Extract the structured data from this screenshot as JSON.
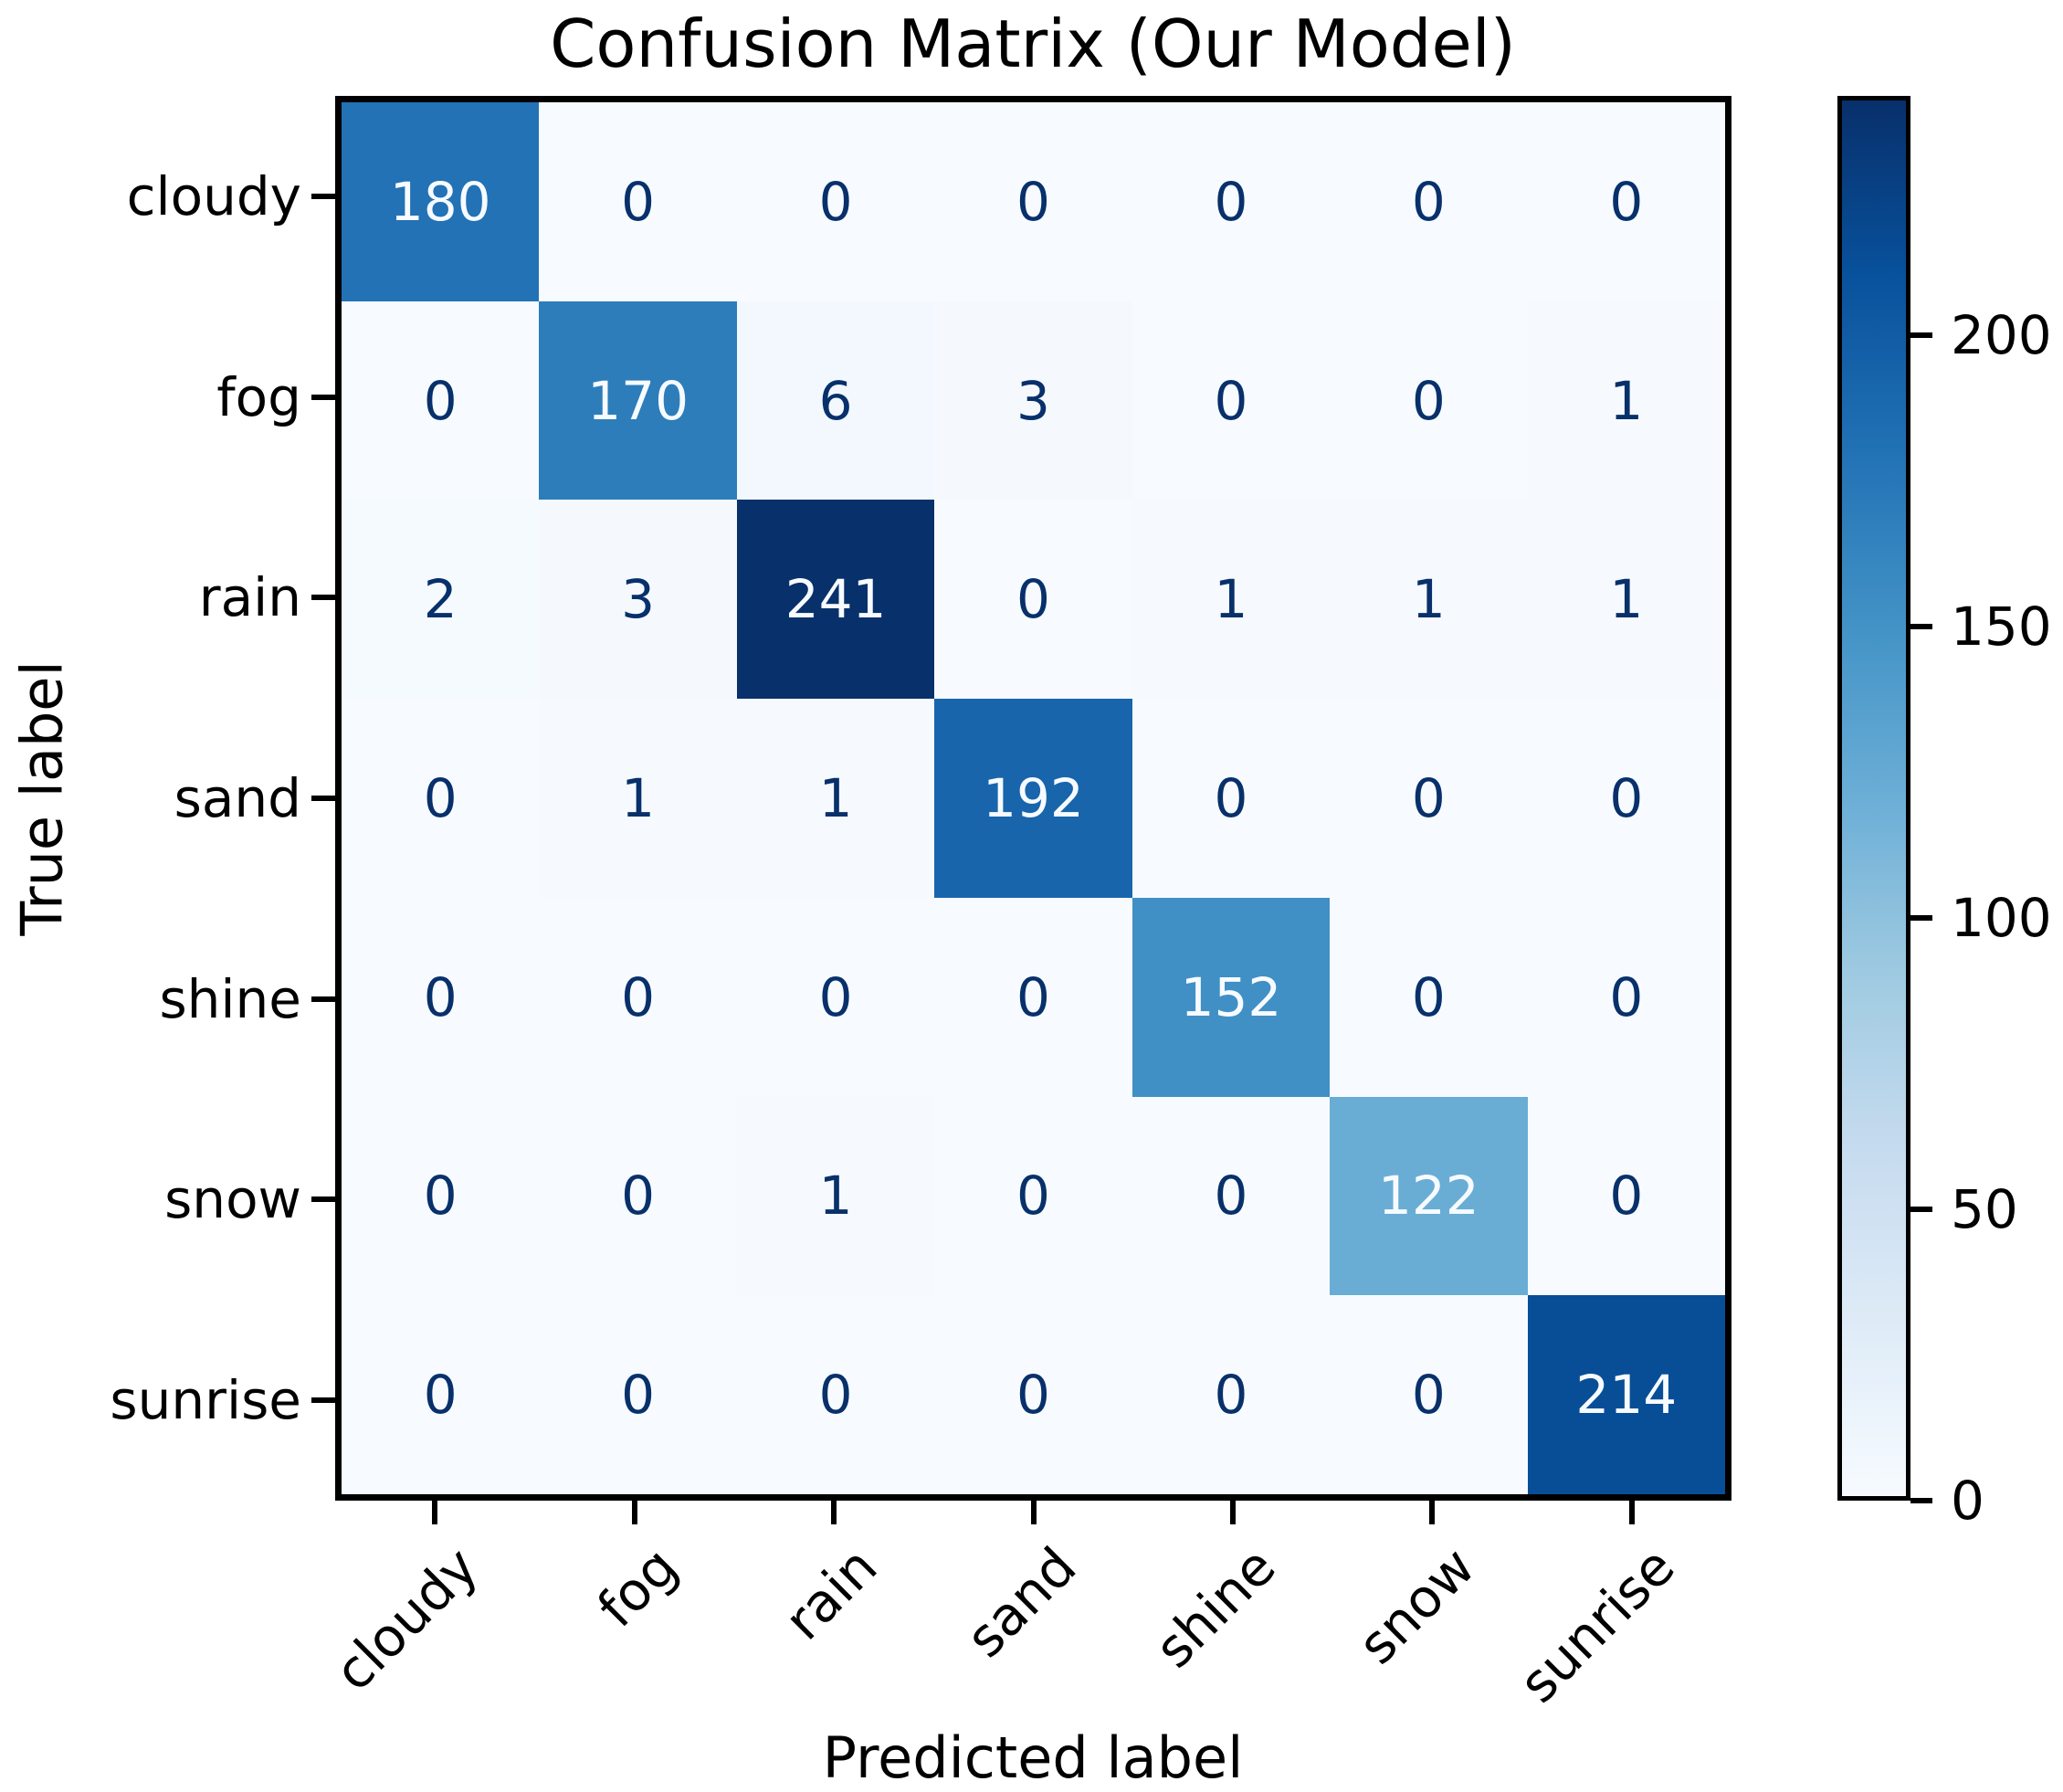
{
  "chart_data": {
    "type": "heatmap",
    "title": "Confusion Matrix (Our Model)",
    "xlabel": "Predicted label",
    "ylabel": "True label",
    "x_tick_labels": [
      "cloudy",
      "fog",
      "rain",
      "sand",
      "shine",
      "snow",
      "sunrise"
    ],
    "y_tick_labels": [
      "cloudy",
      "fog",
      "rain",
      "sand",
      "shine",
      "snow",
      "sunrise"
    ],
    "matrix": [
      [
        180,
        0,
        0,
        0,
        0,
        0,
        0
      ],
      [
        0,
        170,
        6,
        3,
        0,
        0,
        1
      ],
      [
        2,
        3,
        241,
        0,
        1,
        1,
        1
      ],
      [
        0,
        1,
        1,
        192,
        0,
        0,
        0
      ],
      [
        0,
        0,
        0,
        0,
        152,
        0,
        0
      ],
      [
        0,
        0,
        1,
        0,
        0,
        122,
        0
      ],
      [
        0,
        0,
        0,
        0,
        0,
        0,
        214
      ]
    ],
    "colormap": "Blues",
    "vmin": 0,
    "vmax": 241,
    "colorbar_ticks": [
      0,
      50,
      100,
      150,
      200
    ],
    "legend_position": "right-colorbar",
    "grid": false,
    "colors": {
      "cmap_low": "#f7fbff",
      "cmap_high": "#08306b",
      "cell_text_dark": "#08306b",
      "cell_text_light": "#f7fbff",
      "axis_color": "#000000",
      "background": "#ffffff"
    }
  }
}
